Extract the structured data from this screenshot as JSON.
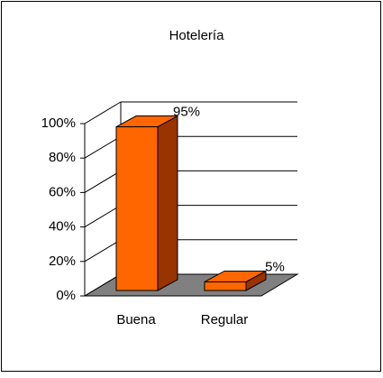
{
  "chart_data": {
    "type": "bar3d",
    "title": "Hotelería",
    "categories": [
      "Buena",
      "Regular"
    ],
    "values": [
      95,
      5
    ],
    "value_labels": [
      "95%",
      "5%"
    ],
    "color": "#ff6600",
    "side_color": "#993300",
    "floor_color": "#808080",
    "ylim": [
      0,
      100
    ],
    "yticks": [
      {
        "value": 0,
        "label": "0%"
      },
      {
        "value": 20,
        "label": "20%"
      },
      {
        "value": 40,
        "label": "40%"
      },
      {
        "value": 60,
        "label": "60%"
      },
      {
        "value": 80,
        "label": "80%"
      },
      {
        "value": 100,
        "label": "100%"
      }
    ],
    "grid": true
  }
}
